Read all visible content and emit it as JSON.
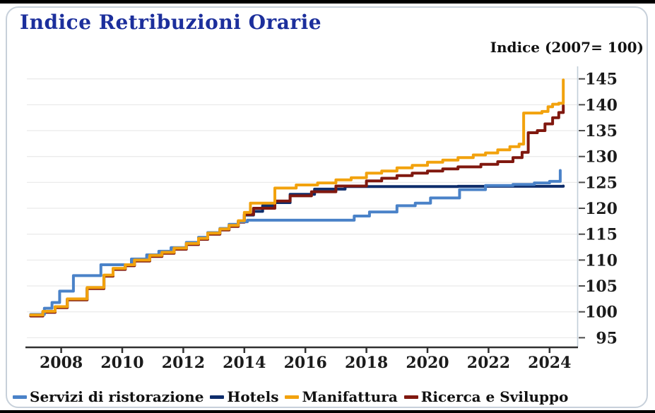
{
  "card": {
    "title": "Indice Retribuzioni Orarie",
    "axis_note": "Indice (2007= 100)"
  },
  "chart_data": {
    "type": "line",
    "title": "Indice Retribuzioni Orarie",
    "y_axis_label": "Indice (2007= 100)",
    "x_label": "",
    "step": true,
    "grid": "horizontal",
    "legend_position": "bottom",
    "x_ticks": [
      2008,
      2010,
      2012,
      2014,
      2016,
      2018,
      2020,
      2022,
      2024
    ],
    "y_ticks": [
      95,
      100,
      105,
      110,
      115,
      120,
      125,
      130,
      135,
      140,
      145
    ],
    "x_range": [
      2006.9,
      2024.95
    ],
    "y_range": [
      93,
      147.5
    ],
    "series": [
      {
        "name": "Servizi di ristorazione",
        "color": "#4a82c8",
        "points": [
          [
            2007.0,
            99.5
          ],
          [
            2007.45,
            100.7
          ],
          [
            2007.7,
            101.8
          ],
          [
            2007.95,
            104.0
          ],
          [
            2008.4,
            107.0
          ],
          [
            2009.3,
            109.1
          ],
          [
            2010.3,
            110.2
          ],
          [
            2010.8,
            111.0
          ],
          [
            2011.2,
            111.7
          ],
          [
            2011.6,
            112.4
          ],
          [
            2012.1,
            113.4
          ],
          [
            2012.5,
            114.4
          ],
          [
            2012.8,
            115.3
          ],
          [
            2013.2,
            116.1
          ],
          [
            2013.5,
            116.9
          ],
          [
            2013.8,
            117.4
          ],
          [
            2014.1,
            117.7
          ],
          [
            2017.6,
            118.5
          ],
          [
            2018.1,
            119.3
          ],
          [
            2019.0,
            120.5
          ],
          [
            2019.6,
            121.0
          ],
          [
            2020.1,
            122.0
          ],
          [
            2021.05,
            123.6
          ],
          [
            2021.9,
            124.4
          ],
          [
            2022.8,
            124.6
          ],
          [
            2023.5,
            124.9
          ],
          [
            2024.0,
            125.2
          ],
          [
            2024.35,
            127.3
          ]
        ]
      },
      {
        "name": "Hotels",
        "color": "#0e2d6b",
        "points": [
          [
            2007.0,
            99.3
          ],
          [
            2007.4,
            100.0
          ],
          [
            2007.8,
            100.9
          ],
          [
            2008.2,
            102.4
          ],
          [
            2008.85,
            104.6
          ],
          [
            2009.4,
            107.0
          ],
          [
            2009.7,
            108.3
          ],
          [
            2010.1,
            109.0
          ],
          [
            2010.4,
            109.9
          ],
          [
            2010.9,
            110.8
          ],
          [
            2011.3,
            111.4
          ],
          [
            2011.7,
            112.2
          ],
          [
            2012.1,
            113.1
          ],
          [
            2012.5,
            114.1
          ],
          [
            2012.8,
            115.1
          ],
          [
            2013.2,
            115.9
          ],
          [
            2013.5,
            116.6
          ],
          [
            2013.8,
            117.5
          ],
          [
            2014.0,
            118.7
          ],
          [
            2014.3,
            119.4
          ],
          [
            2014.6,
            120.5
          ],
          [
            2015.0,
            121.1
          ],
          [
            2015.5,
            122.7
          ],
          [
            2016.3,
            123.7
          ],
          [
            2017.3,
            124.2
          ],
          [
            2021.0,
            124.25
          ],
          [
            2024.45,
            124.3
          ]
        ]
      },
      {
        "name": "Manifattura",
        "color": "#f2a20d",
        "points": [
          [
            2007.0,
            99.4
          ],
          [
            2007.4,
            100.1
          ],
          [
            2007.8,
            101.0
          ],
          [
            2008.2,
            102.5
          ],
          [
            2008.85,
            104.7
          ],
          [
            2009.4,
            107.1
          ],
          [
            2009.7,
            108.4
          ],
          [
            2010.1,
            109.1
          ],
          [
            2010.4,
            110.0
          ],
          [
            2010.9,
            110.9
          ],
          [
            2011.3,
            111.5
          ],
          [
            2011.7,
            112.3
          ],
          [
            2012.1,
            113.2
          ],
          [
            2012.5,
            114.2
          ],
          [
            2012.8,
            115.2
          ],
          [
            2013.2,
            116.0
          ],
          [
            2013.5,
            116.7
          ],
          [
            2013.8,
            117.6
          ],
          [
            2014.0,
            119.2
          ],
          [
            2014.2,
            121.0
          ],
          [
            2015.0,
            123.9
          ],
          [
            2015.7,
            124.5
          ],
          [
            2016.4,
            124.9
          ],
          [
            2017.0,
            125.5
          ],
          [
            2017.5,
            125.9
          ],
          [
            2018.0,
            126.8
          ],
          [
            2018.5,
            127.2
          ],
          [
            2019.0,
            127.8
          ],
          [
            2019.5,
            128.3
          ],
          [
            2020.0,
            128.9
          ],
          [
            2020.5,
            129.3
          ],
          [
            2021.0,
            129.8
          ],
          [
            2021.5,
            130.3
          ],
          [
            2021.9,
            130.7
          ],
          [
            2022.3,
            131.3
          ],
          [
            2022.7,
            131.9
          ],
          [
            2023.0,
            132.4
          ],
          [
            2023.15,
            138.4
          ],
          [
            2023.75,
            138.7
          ],
          [
            2023.95,
            139.6
          ],
          [
            2024.1,
            140.1
          ],
          [
            2024.3,
            140.3
          ],
          [
            2024.45,
            144.8
          ]
        ]
      },
      {
        "name": "Ricerca e Sviluppo",
        "color": "#80180f",
        "points": [
          [
            2007.0,
            99.2
          ],
          [
            2007.4,
            99.9
          ],
          [
            2007.8,
            100.8
          ],
          [
            2008.2,
            102.3
          ],
          [
            2008.85,
            104.5
          ],
          [
            2009.4,
            106.9
          ],
          [
            2009.7,
            108.2
          ],
          [
            2010.1,
            108.9
          ],
          [
            2010.4,
            109.8
          ],
          [
            2010.9,
            110.7
          ],
          [
            2011.3,
            111.3
          ],
          [
            2011.7,
            112.1
          ],
          [
            2012.1,
            113.0
          ],
          [
            2012.5,
            114.0
          ],
          [
            2012.8,
            115.0
          ],
          [
            2013.2,
            115.8
          ],
          [
            2013.5,
            116.5
          ],
          [
            2013.8,
            117.3
          ],
          [
            2014.0,
            118.8
          ],
          [
            2014.3,
            120.0
          ],
          [
            2015.0,
            121.4
          ],
          [
            2015.5,
            122.4
          ],
          [
            2016.2,
            123.2
          ],
          [
            2017.0,
            124.3
          ],
          [
            2018.0,
            125.3
          ],
          [
            2018.5,
            125.8
          ],
          [
            2019.0,
            126.3
          ],
          [
            2019.5,
            126.8
          ],
          [
            2020.0,
            127.2
          ],
          [
            2020.5,
            127.6
          ],
          [
            2021.0,
            128.0
          ],
          [
            2021.75,
            128.5
          ],
          [
            2022.3,
            129.0
          ],
          [
            2022.8,
            129.8
          ],
          [
            2023.1,
            130.8
          ],
          [
            2023.3,
            134.6
          ],
          [
            2023.6,
            135.0
          ],
          [
            2023.85,
            136.3
          ],
          [
            2024.1,
            137.5
          ],
          [
            2024.3,
            138.5
          ],
          [
            2024.45,
            139.8
          ]
        ]
      }
    ]
  },
  "colors": {
    "title": "#1c2f9c",
    "card_border": "#c7d0da",
    "gridline": "#ebebeb",
    "right_axis": "#c2ced8",
    "bottom_axis": "#303030",
    "tick": "#4a4a4a",
    "frame_edge": "#000000"
  }
}
